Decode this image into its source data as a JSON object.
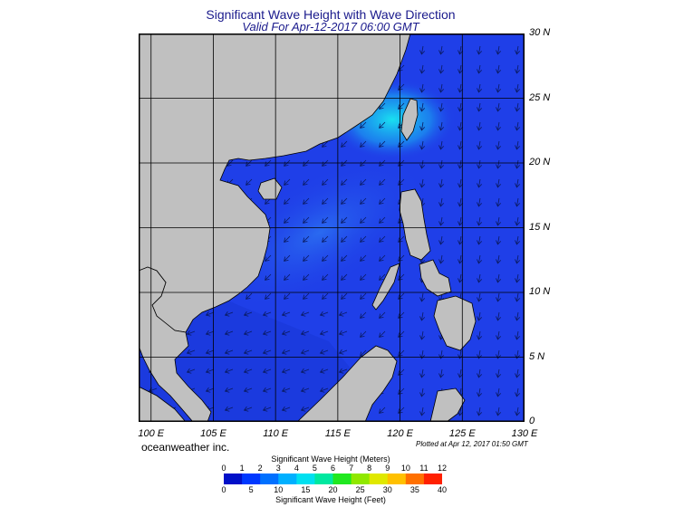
{
  "header": {
    "title": "Significant Wave Height with Wave Direction",
    "subtitle": "Valid For Apr-12-2017 06:00 GMT"
  },
  "map": {
    "lon_range": [
      99,
      130
    ],
    "lat_range": [
      0,
      30
    ],
    "lon_labels": [
      "100 E",
      "105 E",
      "110 E",
      "115 E",
      "120 E",
      "125 E",
      "130 E"
    ],
    "lon_values": [
      100,
      105,
      110,
      115,
      120,
      125,
      130
    ],
    "lat_labels": [
      "0",
      "5 N",
      "10 N",
      "15 N",
      "20 N",
      "25 N",
      "30 N"
    ],
    "lat_values": [
      0,
      5,
      10,
      15,
      20,
      25,
      30
    ],
    "land_color": "#c0c0c0",
    "ocean_color": "#1f3fe8",
    "shallow_color": "#1736d6",
    "high_wave_color": "#19d8f0"
  },
  "footer": {
    "credit": "oceanweather inc.",
    "plotted": "Plotted at Apr 12, 2017 01:50 GMT"
  },
  "legend": {
    "meters_title": "Significant Wave Height (Meters)",
    "feet_title": "Significant Wave Height (Feet)",
    "meters_ticks": [
      "0",
      "1",
      "2",
      "3",
      "4",
      "5",
      "6",
      "7",
      "8",
      "9",
      "10",
      "11",
      "12"
    ],
    "feet_ticks": [
      "0",
      "5",
      "10",
      "15",
      "20",
      "25",
      "30",
      "35",
      "40"
    ],
    "colors": [
      "#0010c8",
      "#0038ff",
      "#0070ff",
      "#00b0ff",
      "#00e0f0",
      "#00e8a0",
      "#20e820",
      "#90e800",
      "#e0e800",
      "#ffc000",
      "#ff7000",
      "#ff2000"
    ]
  }
}
